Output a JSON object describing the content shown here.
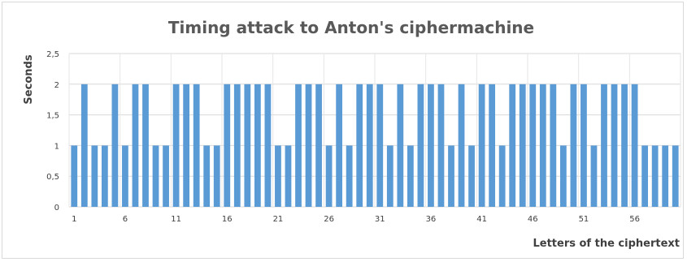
{
  "chart_data": {
    "type": "bar",
    "title": "Timing attack to Anton's ciphermachine",
    "xlabel": "Letters of the ciphertext",
    "ylabel": "Seconds",
    "x": [
      1,
      2,
      3,
      4,
      5,
      6,
      7,
      8,
      9,
      10,
      11,
      12,
      13,
      14,
      15,
      16,
      17,
      18,
      19,
      20,
      21,
      22,
      23,
      24,
      25,
      26,
      27,
      28,
      29,
      30,
      31,
      32,
      33,
      34,
      35,
      36,
      37,
      38,
      39,
      40,
      41,
      42,
      43,
      44,
      45,
      46,
      47,
      48,
      49,
      50,
      51,
      52,
      53,
      54,
      55,
      56,
      57,
      58,
      59,
      60
    ],
    "values": [
      1,
      2,
      1,
      1,
      2,
      1,
      2,
      2,
      1,
      1,
      2,
      2,
      2,
      1,
      1,
      2,
      2,
      2,
      2,
      2,
      1,
      1,
      2,
      2,
      2,
      1,
      2,
      1,
      2,
      2,
      2,
      1,
      2,
      1,
      2,
      2,
      2,
      1,
      2,
      1,
      2,
      2,
      1,
      2,
      2,
      2,
      2,
      2,
      1,
      2,
      2,
      1,
      2,
      2,
      2,
      2,
      1,
      1,
      1,
      1
    ],
    "ylim": [
      0,
      2.5
    ],
    "yticks": [
      "0",
      "0,5",
      "1",
      "1,5",
      "2",
      "2,5"
    ],
    "xtick_labels": [
      "1",
      "6",
      "11",
      "16",
      "21",
      "26",
      "31",
      "36",
      "41",
      "46",
      "51",
      "56"
    ],
    "grid": true,
    "legend": "none",
    "bar_color": "#5b9bd5"
  }
}
